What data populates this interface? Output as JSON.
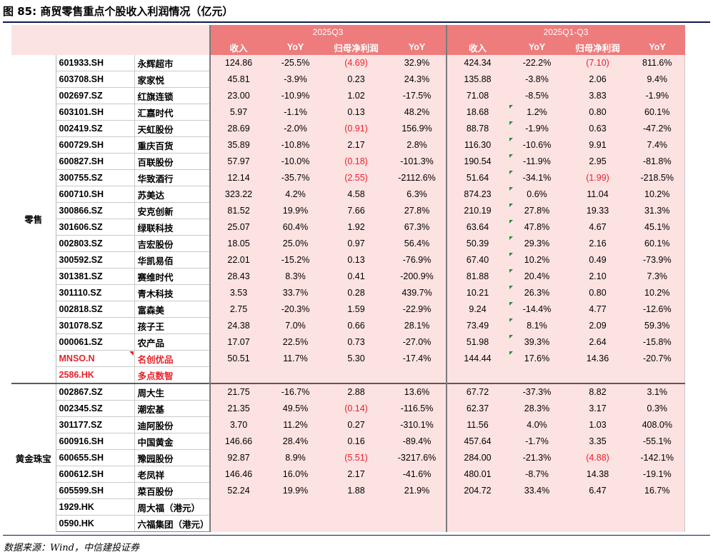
{
  "title": "图 85: 商贸零售重点个股收入利润情况（亿元）",
  "source": "数据来源：Wind，中信建投证券",
  "periods": [
    "2025Q3",
    "2025Q1-Q3"
  ],
  "columns": [
    "收入",
    "YoY",
    "归母净利润",
    "YoY",
    "收入",
    "YoY",
    "归母净利润",
    "YoY"
  ],
  "groups": {
    "retail": "零售",
    "gold": "黄金珠宝"
  },
  "retail_rows": [
    {
      "code": "601933.SH",
      "name": "永辉超市",
      "v": [
        "124.86",
        "-25.5%",
        "(4.69)",
        "32.9%",
        "424.34",
        "-22.2%",
        "(7.10)",
        "811.6%"
      ]
    },
    {
      "code": "603708.SH",
      "name": "家家悦",
      "v": [
        "45.81",
        "-3.9%",
        "0.23",
        "24.3%",
        "135.88",
        "-3.8%",
        "2.06",
        "9.4%"
      ]
    },
    {
      "code": "002697.SZ",
      "name": "红旗连锁",
      "v": [
        "23.00",
        "-10.9%",
        "1.02",
        "-17.5%",
        "71.08",
        "-8.5%",
        "3.83",
        "-1.9%"
      ]
    },
    {
      "code": "603101.SH",
      "name": "汇嘉时代",
      "v": [
        "5.97",
        "-1.1%",
        "0.13",
        "48.2%",
        "18.68",
        "1.2%",
        "0.80",
        "60.1%"
      ]
    },
    {
      "code": "002419.SZ",
      "name": "天虹股份",
      "v": [
        "28.69",
        "-2.0%",
        "(0.91)",
        "156.9%",
        "88.78",
        "-1.9%",
        "0.63",
        "-47.2%"
      ]
    },
    {
      "code": "600729.SH",
      "name": "重庆百货",
      "v": [
        "35.89",
        "-10.8%",
        "2.17",
        "2.8%",
        "116.30",
        "-10.6%",
        "9.91",
        "7.4%"
      ]
    },
    {
      "code": "600827.SH",
      "name": "百联股份",
      "v": [
        "57.97",
        "-10.0%",
        "(0.18)",
        "-101.3%",
        "190.54",
        "-11.9%",
        "2.95",
        "-81.8%"
      ]
    },
    {
      "code": "300755.SZ",
      "name": "华致酒行",
      "v": [
        "12.14",
        "-35.7%",
        "(2.55)",
        "-2112.6%",
        "51.64",
        "-34.1%",
        "(1.99)",
        "-218.5%"
      ]
    },
    {
      "code": "600710.SH",
      "name": "苏美达",
      "v": [
        "323.22",
        "4.2%",
        "4.58",
        "6.3%",
        "874.23",
        "0.6%",
        "11.04",
        "10.2%"
      ]
    },
    {
      "code": "300866.SZ",
      "name": "安克创新",
      "v": [
        "81.52",
        "19.9%",
        "7.66",
        "27.8%",
        "210.19",
        "27.8%",
        "19.33",
        "31.3%"
      ]
    },
    {
      "code": "301606.SZ",
      "name": "绿联科技",
      "v": [
        "25.07",
        "60.4%",
        "1.92",
        "67.3%",
        "63.64",
        "47.8%",
        "4.67",
        "45.1%"
      ]
    },
    {
      "code": "002803.SZ",
      "name": "吉宏股份",
      "v": [
        "18.05",
        "25.0%",
        "0.97",
        "56.4%",
        "50.39",
        "29.3%",
        "2.16",
        "60.1%"
      ]
    },
    {
      "code": "300592.SZ",
      "name": "华凯易佰",
      "v": [
        "22.01",
        "-15.2%",
        "0.13",
        "-76.9%",
        "67.40",
        "10.2%",
        "0.49",
        "-73.9%"
      ]
    },
    {
      "code": "301381.SZ",
      "name": "赛维时代",
      "v": [
        "28.43",
        "8.3%",
        "0.41",
        "-200.9%",
        "81.88",
        "20.4%",
        "2.10",
        "7.3%"
      ]
    },
    {
      "code": "301110.SZ",
      "name": "青木科技",
      "v": [
        "3.53",
        "33.7%",
        "0.28",
        "439.7%",
        "10.21",
        "26.3%",
        "0.80",
        "10.2%"
      ]
    },
    {
      "code": "002818.SZ",
      "name": "富森美",
      "v": [
        "2.75",
        "-20.3%",
        "1.59",
        "-22.9%",
        "9.24",
        "-14.4%",
        "4.77",
        "-12.6%"
      ]
    },
    {
      "code": "301078.SZ",
      "name": "孩子王",
      "v": [
        "24.38",
        "7.0%",
        "0.66",
        "28.1%",
        "73.49",
        "8.1%",
        "2.09",
        "59.3%"
      ]
    },
    {
      "code": "000061.SZ",
      "name": "农产品",
      "v": [
        "17.07",
        "22.5%",
        "0.73",
        "-27.0%",
        "51.98",
        "39.3%",
        "2.64",
        "-15.8%"
      ]
    },
    {
      "code": "MNSO.N",
      "name": "名创优品",
      "v": [
        "50.51",
        "11.7%",
        "5.30",
        "-17.4%",
        "144.44",
        "17.6%",
        "14.36",
        "-20.7%"
      ]
    },
    {
      "code": "2586.HK",
      "name": "多点数智",
      "v": [
        "",
        "",
        "",
        "",
        "",
        "",
        "",
        ""
      ]
    }
  ],
  "gold_rows": [
    {
      "code": "002867.SZ",
      "name": "周大生",
      "v": [
        "21.75",
        "-16.7%",
        "2.88",
        "13.6%",
        "67.72",
        "-37.3%",
        "8.82",
        "3.1%"
      ]
    },
    {
      "code": "002345.SZ",
      "name": "潮宏基",
      "v": [
        "21.35",
        "49.5%",
        "(0.14)",
        "-116.5%",
        "62.37",
        "28.3%",
        "3.17",
        "0.3%"
      ]
    },
    {
      "code": "301177.SZ",
      "name": "迪阿股份",
      "v": [
        "3.70",
        "11.2%",
        "0.27",
        "-310.1%",
        "11.56",
        "4.0%",
        "1.03",
        "408.0%"
      ]
    },
    {
      "code": "600916.SH",
      "name": "中国黄金",
      "v": [
        "146.66",
        "28.4%",
        "0.16",
        "-89.4%",
        "457.64",
        "-1.7%",
        "3.35",
        "-55.1%"
      ]
    },
    {
      "code": "600655.SH",
      "name": "豫园股份",
      "v": [
        "92.87",
        "8.9%",
        "(5.51)",
        "-3217.6%",
        "284.00",
        "-21.3%",
        "(4.88)",
        "-142.1%"
      ]
    },
    {
      "code": "600612.SH",
      "name": "老凤祥",
      "v": [
        "146.46",
        "16.0%",
        "2.17",
        "-41.6%",
        "480.01",
        "-8.7%",
        "14.38",
        "-19.1%"
      ]
    },
    {
      "code": "605599.SH",
      "name": "菜百股份",
      "v": [
        "52.24",
        "19.9%",
        "1.88",
        "21.9%",
        "204.72",
        "33.4%",
        "6.47",
        "16.7%"
      ]
    },
    {
      "code": "1929.HK",
      "name": "周大福（港元）",
      "v": [
        "",
        "",
        "",
        "",
        "",
        "",
        "",
        ""
      ]
    },
    {
      "code": "0590.HK",
      "name": "六福集团（港元）",
      "v": [
        "",
        "",
        "",
        "",
        "",
        "",
        "",
        ""
      ]
    }
  ]
}
